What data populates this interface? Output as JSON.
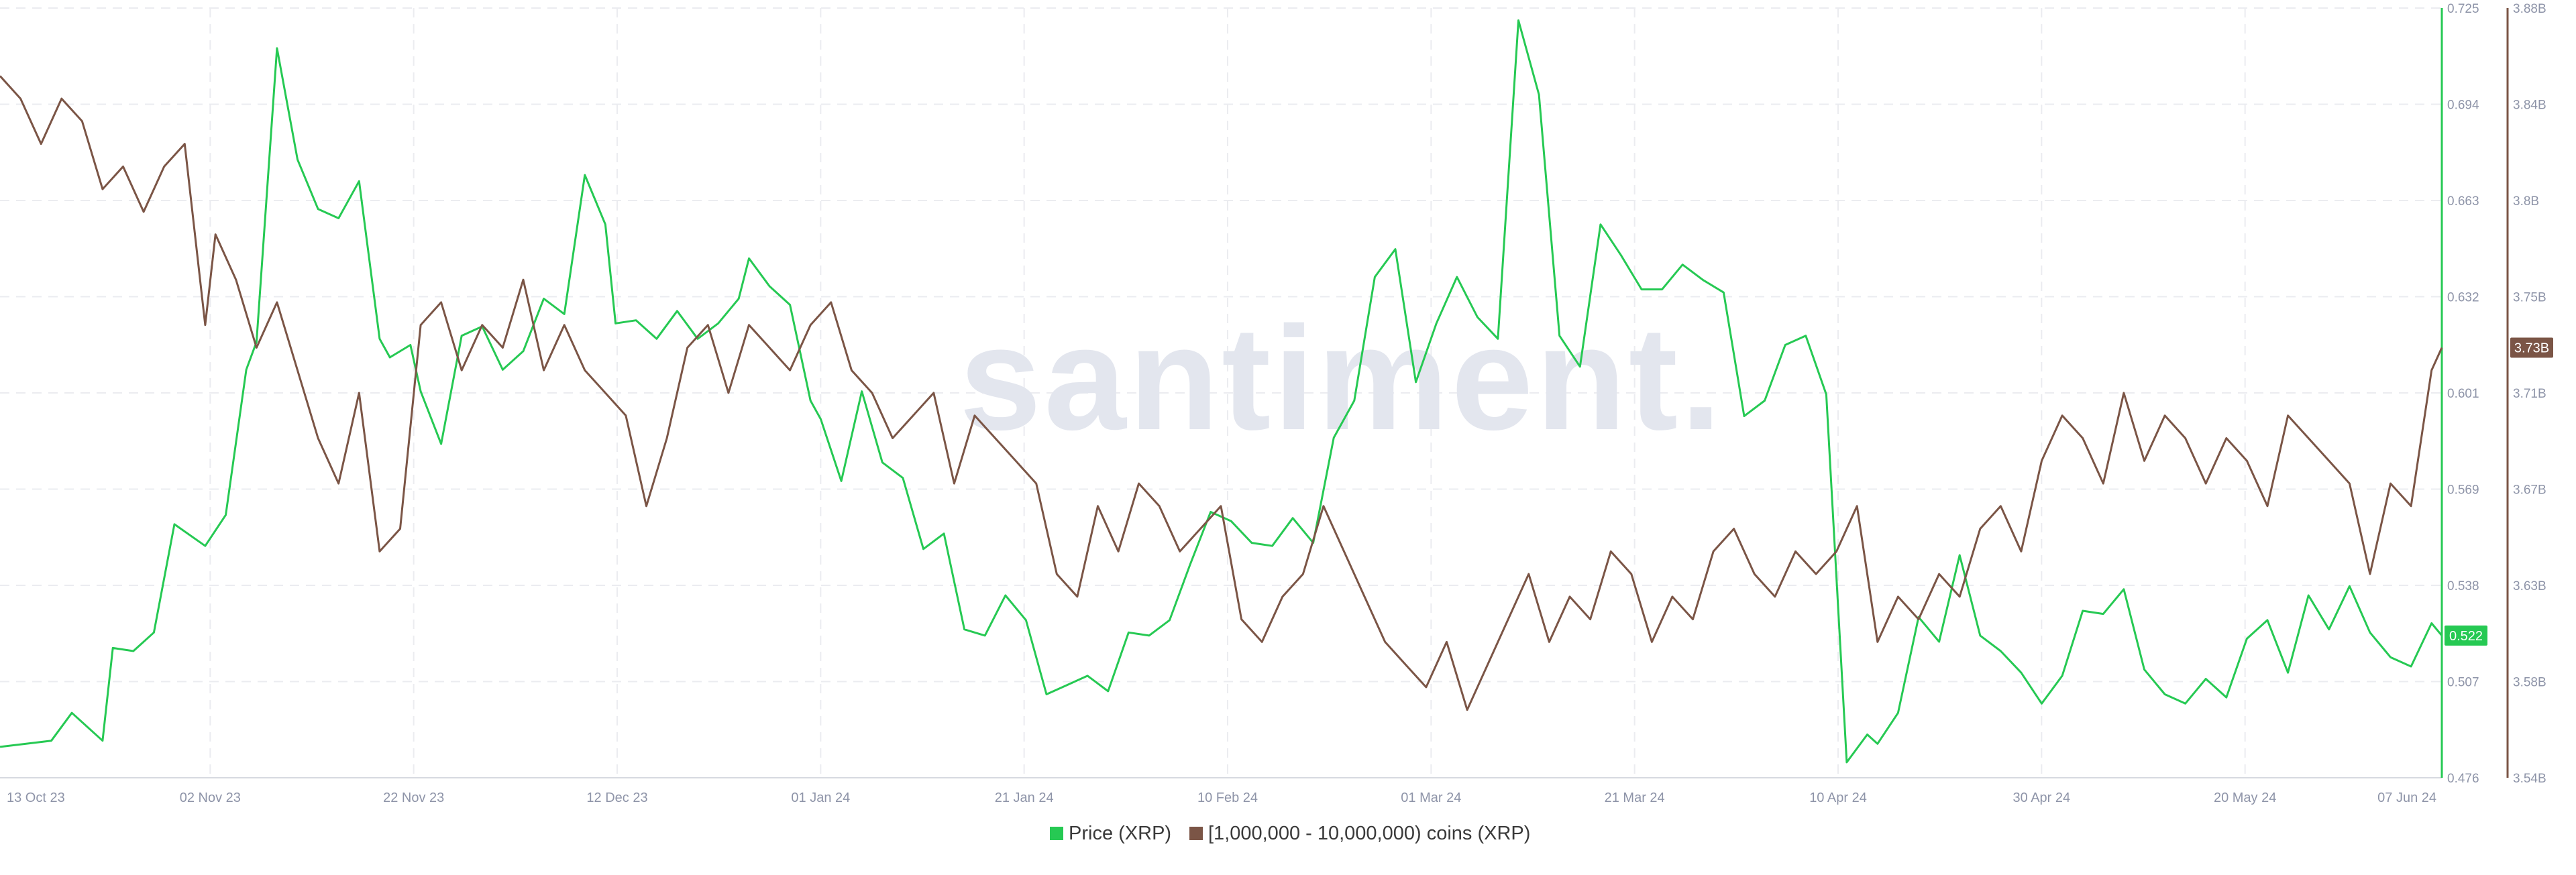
{
  "watermark": "santiment.",
  "colors": {
    "price": "#26c953",
    "holders": "#7b5546",
    "grid": "#ebecf0",
    "axis_text": "#8e94a8"
  },
  "chart_data": {
    "type": "line",
    "title": "",
    "x_ticks": [
      "13 Oct 23",
      "02 Nov 23",
      "22 Nov 23",
      "12 Dec 23",
      "01 Jan 24",
      "21 Jan 24",
      "10 Feb 24",
      "01 Mar 24",
      "21 Mar 24",
      "10 Apr 24",
      "30 Apr 24",
      "20 May 24",
      "07 Jun 24"
    ],
    "x_range": [
      "2023-10-13",
      "2024-06-07"
    ],
    "grid": true,
    "legend_position": "bottom-center",
    "y_left": {
      "series": "Price (XRP)",
      "ticks": [
        "0.476",
        "0.507",
        "0.538",
        "0.569",
        "0.601",
        "0.632",
        "0.663",
        "0.694",
        "0.725"
      ],
      "range": [
        0.476,
        0.725
      ]
    },
    "y_right": {
      "series": "[1,000,000 - 10,000,000) coins (XRP)",
      "ticks": [
        "3.54B",
        "3.58B",
        "3.63B",
        "3.67B",
        "3.71B",
        "3.75B",
        "3.8B",
        "3.84B",
        "3.88B"
      ],
      "range": [
        3.54,
        3.88
      ],
      "unit": "B"
    },
    "series": [
      {
        "name": "Price (XRP)",
        "axis": "left",
        "current_label": "0.522",
        "x": [
          "2023-10-13",
          "2023-10-18",
          "2023-10-20",
          "2023-10-23",
          "2023-10-24",
          "2023-10-26",
          "2023-10-28",
          "2023-10-30",
          "2023-11-02",
          "2023-11-04",
          "2023-11-06",
          "2023-11-07",
          "2023-11-09",
          "2023-11-11",
          "2023-11-13",
          "2023-11-15",
          "2023-11-17",
          "2023-11-19",
          "2023-11-20",
          "2023-11-22",
          "2023-11-23",
          "2023-11-25",
          "2023-11-27",
          "2023-11-29",
          "2023-12-01",
          "2023-12-03",
          "2023-12-05",
          "2023-12-07",
          "2023-12-09",
          "2023-12-11",
          "2023-12-12",
          "2023-12-14",
          "2023-12-16",
          "2023-12-18",
          "2023-12-20",
          "2023-12-22",
          "2023-12-24",
          "2023-12-25",
          "2023-12-27",
          "2023-12-29",
          "2023-12-31",
          "2024-01-01",
          "2024-01-03",
          "2024-01-05",
          "2024-01-07",
          "2024-01-09",
          "2024-01-11",
          "2024-01-13",
          "2024-01-15",
          "2024-01-17",
          "2024-01-19",
          "2024-01-21",
          "2024-01-23",
          "2024-01-25",
          "2024-01-27",
          "2024-01-29",
          "2024-01-31",
          "2024-02-02",
          "2024-02-04",
          "2024-02-06",
          "2024-02-08",
          "2024-02-10",
          "2024-02-12",
          "2024-02-14",
          "2024-02-16",
          "2024-02-18",
          "2024-02-20",
          "2024-02-22",
          "2024-02-24",
          "2024-02-26",
          "2024-02-28",
          "2024-03-01",
          "2024-03-03",
          "2024-03-05",
          "2024-03-07",
          "2024-03-09",
          "2024-03-11",
          "2024-03-13",
          "2024-03-15",
          "2024-03-17",
          "2024-03-19",
          "2024-03-21",
          "2024-03-23",
          "2024-03-25",
          "2024-03-27",
          "2024-03-29",
          "2024-03-31",
          "2024-04-02",
          "2024-04-04",
          "2024-04-06",
          "2024-04-08",
          "2024-04-10",
          "2024-04-12",
          "2024-04-13",
          "2024-04-15",
          "2024-04-17",
          "2024-04-19",
          "2024-04-21",
          "2024-04-23",
          "2024-04-25",
          "2024-04-27",
          "2024-04-29",
          "2024-05-01",
          "2024-05-03",
          "2024-05-05",
          "2024-05-07",
          "2024-05-09",
          "2024-05-11",
          "2024-05-13",
          "2024-05-15",
          "2024-05-17",
          "2024-05-19",
          "2024-05-21",
          "2024-05-23",
          "2024-05-25",
          "2024-05-27",
          "2024-05-29",
          "2024-05-31",
          "2024-06-02",
          "2024-06-04",
          "2024-06-06",
          "2024-06-07"
        ],
        "values": [
          0.486,
          0.488,
          0.497,
          0.488,
          0.518,
          0.517,
          0.523,
          0.558,
          0.551,
          0.561,
          0.608,
          0.617,
          0.712,
          0.676,
          0.66,
          0.657,
          0.669,
          0.618,
          0.612,
          0.616,
          0.601,
          0.584,
          0.619,
          0.622,
          0.608,
          0.614,
          0.631,
          0.626,
          0.671,
          0.655,
          0.623,
          0.624,
          0.618,
          0.627,
          0.618,
          0.623,
          0.631,
          0.644,
          0.635,
          0.629,
          0.598,
          0.592,
          0.572,
          0.601,
          0.578,
          0.573,
          0.55,
          0.555,
          0.524,
          0.522,
          0.535,
          0.527,
          0.503,
          0.506,
          0.509,
          0.504,
          0.523,
          0.522,
          0.527,
          0.545,
          0.562,
          0.559,
          0.552,
          0.551,
          0.56,
          0.552,
          0.586,
          0.598,
          0.638,
          0.647,
          0.604,
          0.623,
          0.638,
          0.625,
          0.618,
          0.721,
          0.697,
          0.619,
          0.609,
          0.655,
          0.645,
          0.634,
          0.634,
          0.642,
          0.637,
          0.633,
          0.593,
          0.598,
          0.616,
          0.619,
          0.6,
          0.481,
          0.49,
          0.487,
          0.497,
          0.528,
          0.52,
          0.548,
          0.522,
          0.517,
          0.51,
          0.5,
          0.509,
          0.53,
          0.529,
          0.537,
          0.511,
          0.503,
          0.5,
          0.508,
          0.502,
          0.521,
          0.527,
          0.51,
          0.535,
          0.524,
          0.538,
          0.523,
          0.515,
          0.512,
          0.526,
          0.522
        ]
      },
      {
        "name": "[1,000,000 - 10,000,000) coins (XRP)",
        "axis": "right",
        "current_label": "3.73B",
        "x": [
          "2023-10-13",
          "2023-10-15",
          "2023-10-17",
          "2023-10-19",
          "2023-10-21",
          "2023-10-23",
          "2023-10-25",
          "2023-10-27",
          "2023-10-29",
          "2023-10-31",
          "2023-11-02",
          "2023-11-03",
          "2023-11-05",
          "2023-11-07",
          "2023-11-09",
          "2023-11-11",
          "2023-11-13",
          "2023-11-15",
          "2023-11-17",
          "2023-11-19",
          "2023-11-21",
          "2023-11-23",
          "2023-11-25",
          "2023-11-27",
          "2023-11-29",
          "2023-12-01",
          "2023-12-03",
          "2023-12-05",
          "2023-12-07",
          "2023-12-09",
          "2023-12-11",
          "2023-12-13",
          "2023-12-15",
          "2023-12-17",
          "2023-12-19",
          "2023-12-21",
          "2023-12-23",
          "2023-12-25",
          "2023-12-27",
          "2023-12-29",
          "2023-12-31",
          "2024-01-02",
          "2024-01-04",
          "2024-01-06",
          "2024-01-08",
          "2024-01-10",
          "2024-01-12",
          "2024-01-14",
          "2024-01-16",
          "2024-01-18",
          "2024-01-20",
          "2024-01-22",
          "2024-01-24",
          "2024-01-26",
          "2024-01-28",
          "2024-01-30",
          "2024-02-01",
          "2024-02-03",
          "2024-02-05",
          "2024-02-07",
          "2024-02-09",
          "2024-02-11",
          "2024-02-13",
          "2024-02-15",
          "2024-02-17",
          "2024-02-19",
          "2024-02-21",
          "2024-02-23",
          "2024-02-25",
          "2024-02-27",
          "2024-02-29",
          "2024-03-02",
          "2024-03-04",
          "2024-03-06",
          "2024-03-08",
          "2024-03-10",
          "2024-03-12",
          "2024-03-14",
          "2024-03-16",
          "2024-03-18",
          "2024-03-20",
          "2024-03-22",
          "2024-03-24",
          "2024-03-26",
          "2024-03-28",
          "2024-03-30",
          "2024-04-01",
          "2024-04-03",
          "2024-04-05",
          "2024-04-07",
          "2024-04-09",
          "2024-04-11",
          "2024-04-13",
          "2024-04-15",
          "2024-04-17",
          "2024-04-19",
          "2024-04-21",
          "2024-04-23",
          "2024-04-25",
          "2024-04-27",
          "2024-04-29",
          "2024-05-01",
          "2024-05-03",
          "2024-05-05",
          "2024-05-07",
          "2024-05-09",
          "2024-05-11",
          "2024-05-13",
          "2024-05-15",
          "2024-05-17",
          "2024-05-19",
          "2024-05-21",
          "2024-05-23",
          "2024-05-25",
          "2024-05-27",
          "2024-05-29",
          "2024-05-31",
          "2024-06-02",
          "2024-06-04",
          "2024-06-06",
          "2024-06-07"
        ],
        "values": [
          3.85,
          3.84,
          3.82,
          3.84,
          3.83,
          3.8,
          3.81,
          3.79,
          3.81,
          3.82,
          3.74,
          3.78,
          3.76,
          3.73,
          3.75,
          3.72,
          3.69,
          3.67,
          3.71,
          3.64,
          3.65,
          3.74,
          3.75,
          3.72,
          3.74,
          3.73,
          3.76,
          3.72,
          3.74,
          3.72,
          3.71,
          3.7,
          3.66,
          3.69,
          3.73,
          3.74,
          3.71,
          3.74,
          3.73,
          3.72,
          3.74,
          3.75,
          3.72,
          3.71,
          3.69,
          3.7,
          3.71,
          3.67,
          3.7,
          3.69,
          3.68,
          3.67,
          3.63,
          3.62,
          3.66,
          3.64,
          3.67,
          3.66,
          3.64,
          3.65,
          3.66,
          3.61,
          3.6,
          3.62,
          3.63,
          3.66,
          3.64,
          3.62,
          3.6,
          3.59,
          3.58,
          3.6,
          3.57,
          3.59,
          3.61,
          3.63,
          3.6,
          3.62,
          3.61,
          3.64,
          3.63,
          3.6,
          3.62,
          3.61,
          3.64,
          3.65,
          3.63,
          3.62,
          3.64,
          3.63,
          3.64,
          3.66,
          3.6,
          3.62,
          3.61,
          3.63,
          3.62,
          3.65,
          3.66,
          3.64,
          3.68,
          3.7,
          3.69,
          3.67,
          3.71,
          3.68,
          3.7,
          3.69,
          3.67,
          3.69,
          3.68,
          3.66,
          3.7,
          3.69,
          3.68,
          3.67,
          3.63,
          3.67,
          3.66,
          3.72,
          3.73
        ]
      }
    ]
  }
}
